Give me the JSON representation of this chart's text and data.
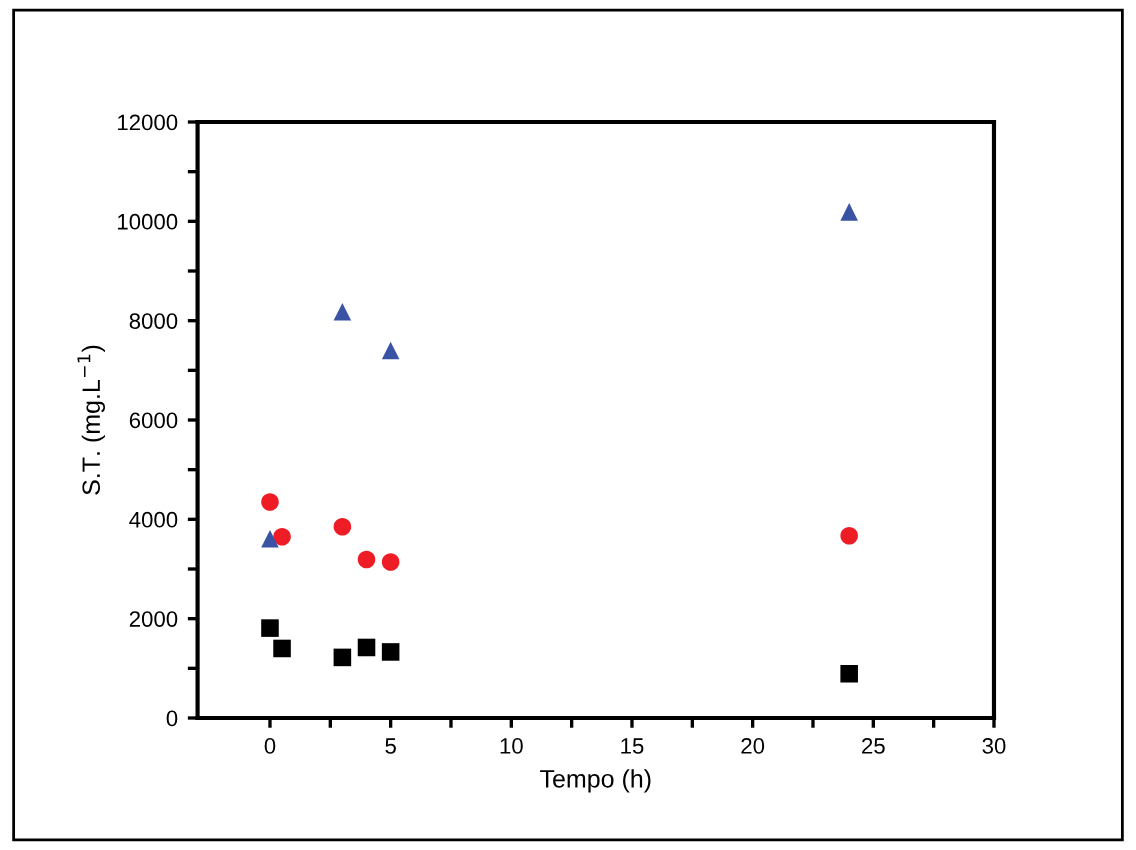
{
  "chart_data": {
    "type": "scatter",
    "xlabel": "Tempo (h)",
    "ylabel": "S.T. (mg.L$^{−1}$)",
    "xlim": [
      -3,
      30
    ],
    "ylim": [
      0,
      12000
    ],
    "xticks": [
      0,
      {
        "value": 2.5,
        "label": null
      },
      5,
      {
        "value": 7.5,
        "label": null
      },
      10,
      {
        "value": 12.5,
        "label": null
      },
      15,
      {
        "value": 17.5,
        "label": null
      },
      20,
      {
        "value": 22.5,
        "label": null
      },
      25,
      {
        "value": 27.5,
        "label": null
      },
      30
    ],
    "yticks": [
      0,
      {
        "value": 1000,
        "label": null
      },
      2000,
      {
        "value": 3000,
        "label": null
      },
      4000,
      {
        "value": 5000,
        "label": null
      },
      6000,
      {
        "value": 7000,
        "label": null
      },
      8000,
      {
        "value": 9000,
        "label": null
      },
      10000,
      {
        "value": 11000,
        "label": null
      },
      12000
    ],
    "grid": false,
    "legend": false,
    "series": [
      {
        "color": "#000000",
        "marker": "square",
        "x": [
          0,
          0.5,
          3,
          4,
          5,
          24
        ],
        "values": [
          1810,
          1400,
          1220,
          1420,
          1330,
          890
        ]
      },
      {
        "color": "#ee1c25",
        "marker": "circle",
        "x": [
          0,
          0.5,
          3,
          4,
          5,
          24
        ],
        "values": [
          4350,
          3650,
          3850,
          3190,
          3140,
          3670
        ]
      },
      {
        "color": "#3a53a4",
        "marker": "triangle",
        "x": [
          0,
          3,
          5,
          24
        ],
        "values": [
          3610,
          8180,
          7400,
          10190
        ]
      }
    ]
  }
}
